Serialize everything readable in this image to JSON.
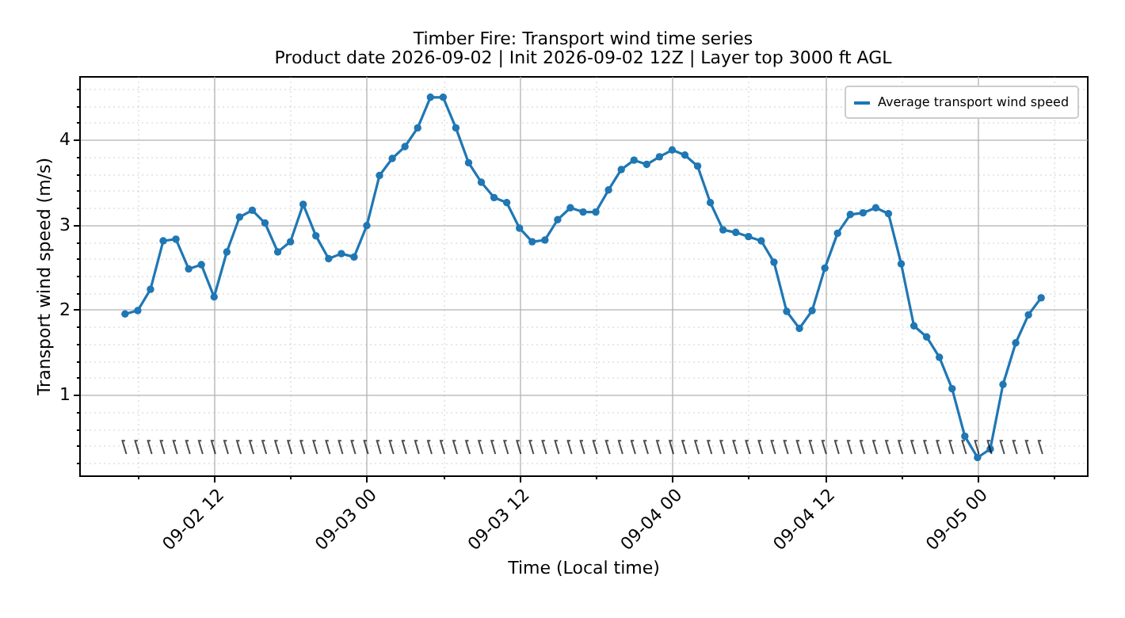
{
  "chart_data": {
    "type": "line",
    "title": "Timber Fire: Transport wind time series",
    "subtitle": "Product date 2026-09-02 | Init 2026-09-02 12Z | Layer top 3000 ft AGL",
    "xlabel": "Time (Local time)",
    "ylabel": "Transport wind speed (m/s)",
    "series": [
      {
        "name": "Average transport wind speed",
        "color": "#1f77b4",
        "x": [
          "2026-09-02T05:00",
          "2026-09-02T06:00",
          "2026-09-02T07:00",
          "2026-09-02T08:00",
          "2026-09-02T09:00",
          "2026-09-02T10:00",
          "2026-09-02T11:00",
          "2026-09-02T12:00",
          "2026-09-02T13:00",
          "2026-09-02T14:00",
          "2026-09-02T15:00",
          "2026-09-02T16:00",
          "2026-09-02T17:00",
          "2026-09-02T18:00",
          "2026-09-02T19:00",
          "2026-09-02T20:00",
          "2026-09-02T21:00",
          "2026-09-02T22:00",
          "2026-09-02T23:00",
          "2026-09-03T00:00",
          "2026-09-03T01:00",
          "2026-09-03T02:00",
          "2026-09-03T03:00",
          "2026-09-03T04:00",
          "2026-09-03T05:00",
          "2026-09-03T06:00",
          "2026-09-03T07:00",
          "2026-09-03T08:00",
          "2026-09-03T09:00",
          "2026-09-03T10:00",
          "2026-09-03T11:00",
          "2026-09-03T12:00",
          "2026-09-03T13:00",
          "2026-09-03T14:00",
          "2026-09-03T15:00",
          "2026-09-03T16:00",
          "2026-09-03T17:00",
          "2026-09-03T18:00",
          "2026-09-03T19:00",
          "2026-09-03T20:00",
          "2026-09-03T21:00",
          "2026-09-03T22:00",
          "2026-09-03T23:00",
          "2026-09-04T00:00",
          "2026-09-04T01:00",
          "2026-09-04T02:00",
          "2026-09-04T03:00",
          "2026-09-04T04:00",
          "2026-09-04T05:00",
          "2026-09-04T06:00",
          "2026-09-04T07:00",
          "2026-09-04T08:00",
          "2026-09-04T09:00",
          "2026-09-04T10:00",
          "2026-09-04T11:00",
          "2026-09-04T12:00",
          "2026-09-04T13:00",
          "2026-09-04T14:00",
          "2026-09-04T15:00",
          "2026-09-04T16:00",
          "2026-09-04T17:00",
          "2026-09-04T18:00",
          "2026-09-04T19:00",
          "2026-09-04T20:00",
          "2026-09-04T21:00",
          "2026-09-04T22:00",
          "2026-09-04T23:00",
          "2026-09-05T00:00",
          "2026-09-05T01:00",
          "2026-09-05T02:00",
          "2026-09-05T03:00",
          "2026-09-05T04:00",
          "2026-09-05T05:00"
        ],
        "values": [
          1.95,
          1.99,
          2.24,
          2.81,
          2.83,
          2.48,
          2.53,
          2.15,
          2.68,
          3.09,
          3.17,
          3.02,
          2.68,
          2.8,
          3.24,
          2.87,
          2.6,
          2.66,
          2.62,
          2.99,
          3.58,
          3.78,
          3.92,
          4.14,
          4.5,
          4.5,
          4.14,
          3.73,
          3.5,
          3.32,
          3.26,
          2.96,
          2.8,
          2.82,
          3.06,
          3.2,
          3.15,
          3.15,
          3.41,
          3.65,
          3.76,
          3.71,
          3.8,
          3.88,
          3.82,
          3.69,
          3.26,
          2.94,
          2.91,
          2.86,
          2.81,
          2.56,
          1.98,
          1.78,
          1.99,
          2.49,
          2.9,
          3.12,
          3.14,
          3.2,
          3.13,
          2.54,
          1.81,
          1.68,
          1.44,
          1.07,
          0.51,
          0.26,
          0.36,
          1.12,
          1.61,
          1.94,
          2.14
        ]
      },
      {
        "type": "scatter",
        "color": "#000000",
        "marker": "cross",
        "x": [
          "2026-09-02T05:00",
          "2026-09-02T06:00",
          "2026-09-02T07:00",
          "2026-09-02T08:00",
          "2026-09-02T09:00",
          "2026-09-02T10:00",
          "2026-09-02T11:00",
          "2026-09-02T12:00",
          "2026-09-02T13:00",
          "2026-09-02T14:00",
          "2026-09-02T15:00",
          "2026-09-02T16:00",
          "2026-09-02T17:00",
          "2026-09-02T18:00",
          "2026-09-02T19:00",
          "2026-09-02T20:00",
          "2026-09-02T21:00",
          "2026-09-02T22:00",
          "2026-09-02T23:00",
          "2026-09-03T00:00",
          "2026-09-03T01:00",
          "2026-09-03T02:00",
          "2026-09-03T03:00",
          "2026-09-03T04:00",
          "2026-09-03T05:00",
          "2026-09-03T06:00",
          "2026-09-03T07:00",
          "2026-09-03T08:00",
          "2026-09-03T09:00",
          "2026-09-03T10:00",
          "2026-09-03T11:00",
          "2026-09-03T12:00",
          "2026-09-03T13:00",
          "2026-09-03T14:00",
          "2026-09-03T15:00",
          "2026-09-03T16:00",
          "2026-09-03T17:00",
          "2026-09-03T18:00",
          "2026-09-03T19:00",
          "2026-09-03T20:00",
          "2026-09-03T21:00",
          "2026-09-03T22:00",
          "2026-09-03T23:00",
          "2026-09-04T00:00",
          "2026-09-04T01:00",
          "2026-09-04T02:00",
          "2026-09-04T03:00",
          "2026-09-04T04:00",
          "2026-09-04T05:00",
          "2026-09-04T06:00",
          "2026-09-04T07:00",
          "2026-09-04T08:00",
          "2026-09-04T09:00",
          "2026-09-04T10:00",
          "2026-09-04T11:00",
          "2026-09-04T12:00",
          "2026-09-04T13:00",
          "2026-09-04T14:00",
          "2026-09-04T15:00",
          "2026-09-04T16:00",
          "2026-09-04T17:00",
          "2026-09-04T18:00",
          "2026-09-04T19:00",
          "2026-09-04T20:00",
          "2026-09-04T21:00",
          "2026-09-04T22:00",
          "2026-09-04T23:00",
          "2026-09-05T00:00",
          "2026-09-05T01:00",
          "2026-09-05T02:00",
          "2026-09-05T03:00",
          "2026-09-05T04:00",
          "2026-09-05T05:00"
        ],
        "values": [
          0.38,
          0.38,
          0.38,
          0.38,
          0.38,
          0.38,
          0.38,
          0.38,
          0.38,
          0.38,
          0.38,
          0.38,
          0.38,
          0.38,
          0.38,
          0.38,
          0.38,
          0.38,
          0.38,
          0.38,
          0.38,
          0.38,
          0.38,
          0.38,
          0.38,
          0.38,
          0.38,
          0.38,
          0.38,
          0.38,
          0.38,
          0.38,
          0.38,
          0.38,
          0.38,
          0.38,
          0.38,
          0.38,
          0.38,
          0.38,
          0.38,
          0.38,
          0.38,
          0.38,
          0.38,
          0.38,
          0.38,
          0.38,
          0.38,
          0.38,
          0.38,
          0.38,
          0.38,
          0.38,
          0.38,
          0.38,
          0.38,
          0.38,
          0.38,
          0.38,
          0.38,
          0.38,
          0.38,
          0.38,
          0.38,
          0.38,
          0.38,
          0.38,
          0.38,
          0.38,
          0.38,
          0.38,
          0.38
        ]
      }
    ],
    "xlim": [
      "2026-09-02T01:24",
      "2026-09-05T08:36"
    ],
    "xticks": [
      {
        "value": "2026-09-02T06:00",
        "label": null
      },
      {
        "value": "2026-09-02T12:00",
        "label": "09-02 12"
      },
      {
        "value": "2026-09-02T18:00",
        "label": null
      },
      {
        "value": "2026-09-03T00:00",
        "label": "09-03 00"
      },
      {
        "value": "2026-09-03T06:00",
        "label": null
      },
      {
        "value": "2026-09-03T12:00",
        "label": "09-03 12"
      },
      {
        "value": "2026-09-03T18:00",
        "label": null
      },
      {
        "value": "2026-09-04T00:00",
        "label": "09-04 00"
      },
      {
        "value": "2026-09-04T06:00",
        "label": null
      },
      {
        "value": "2026-09-04T12:00",
        "label": "09-04 12"
      },
      {
        "value": "2026-09-04T18:00",
        "label": null
      },
      {
        "value": "2026-09-05T00:00",
        "label": "09-05 00"
      },
      {
        "value": "2026-09-05T06:00",
        "label": null
      }
    ],
    "ylim": [
      0.05,
      4.75
    ],
    "yticks": [
      {
        "value": 0.2,
        "label": null
      },
      {
        "value": 0.4,
        "label": null
      },
      {
        "value": 0.6,
        "label": null
      },
      {
        "value": 0.8,
        "label": null
      },
      1,
      {
        "value": 1.2,
        "label": null
      },
      {
        "value": 1.4,
        "label": null
      },
      {
        "value": 1.6,
        "label": null
      },
      {
        "value": 1.8,
        "label": null
      },
      2,
      {
        "value": 2.2,
        "label": null
      },
      {
        "value": 2.4,
        "label": null
      },
      {
        "value": 2.6,
        "label": null
      },
      {
        "value": 2.8,
        "label": null
      },
      3,
      {
        "value": 3.2,
        "label": null
      },
      {
        "value": 3.4,
        "label": null
      },
      {
        "value": 3.6,
        "label": null
      },
      {
        "value": 3.8,
        "label": null
      },
      4,
      {
        "value": 4.2,
        "label": null
      },
      {
        "value": 4.4,
        "label": null
      },
      {
        "value": 4.6,
        "label": null
      }
    ],
    "grid": true,
    "legend": "top right",
    "marker": "circle",
    "line_style": "solid"
  }
}
